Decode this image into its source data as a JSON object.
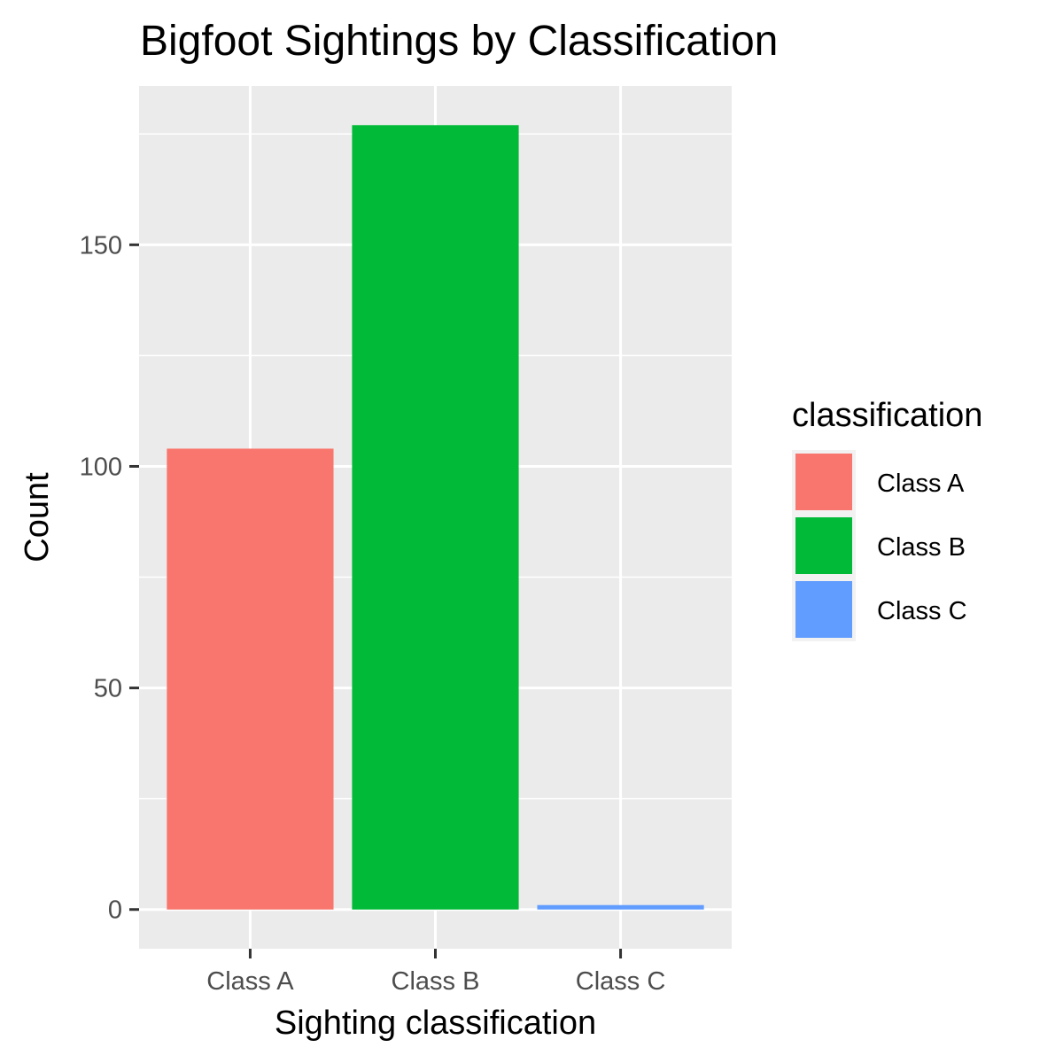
{
  "chart_data": {
    "type": "bar",
    "title": "Bigfoot Sightings by Classification",
    "xlabel": "Sighting classification",
    "ylabel": "Count",
    "categories": [
      "Class A",
      "Class B",
      "Class C"
    ],
    "values": [
      104,
      177,
      1
    ],
    "colors": [
      "#F8766D",
      "#00BA38",
      "#619CFF"
    ],
    "ylim": [
      -8.85,
      185.85
    ],
    "yticks": [
      0,
      50,
      100,
      150
    ],
    "ytick_labels": [
      "0",
      "50",
      "100",
      "150"
    ],
    "grid": true,
    "panel_background": "#EBEBEB",
    "legend": {
      "title": "classification",
      "position": "right",
      "entries": [
        "Class A",
        "Class B",
        "Class C"
      ]
    }
  }
}
